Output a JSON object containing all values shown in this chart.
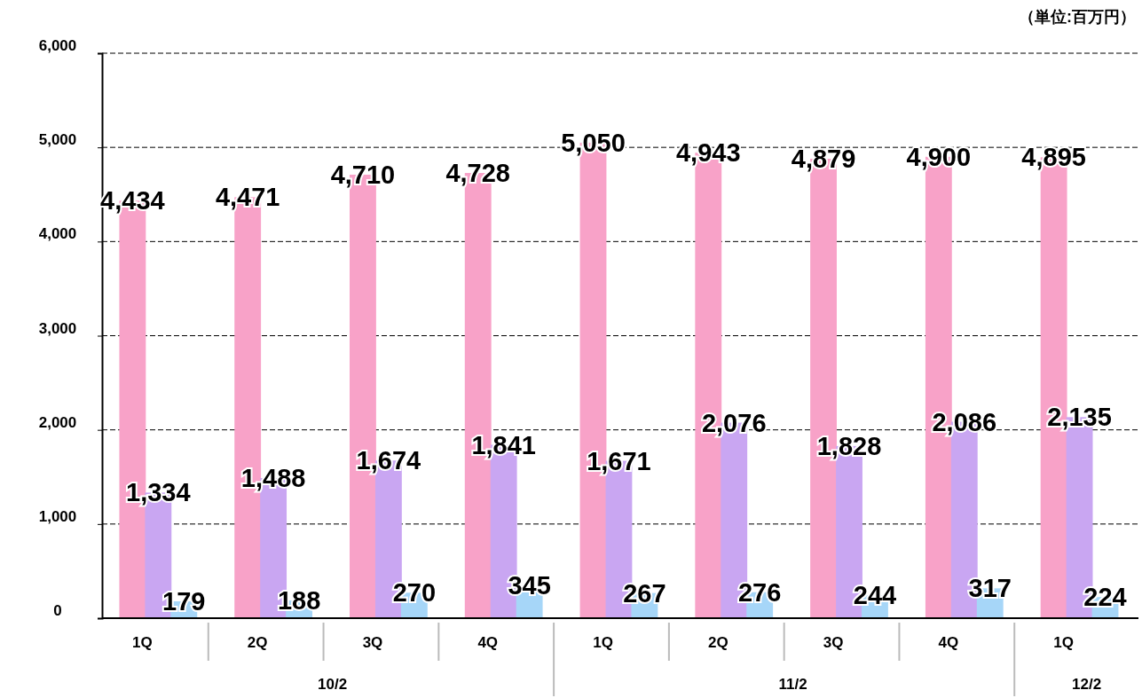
{
  "chart_data": {
    "type": "bar",
    "ylabel": "（単位:百万円）",
    "categories": [
      "1Q",
      "2Q",
      "3Q",
      "4Q",
      "1Q",
      "2Q",
      "3Q",
      "4Q",
      "1Q"
    ],
    "series": [
      {
        "color": "#f8a2c8",
        "values": [
          4434,
          4471,
          4710,
          4728,
          5050,
          4943,
          4879,
          4900,
          4895
        ],
        "value_labels": [
          "4,434",
          "4,471",
          "4,710",
          "4,728",
          "5,050",
          "4,943",
          "4,879",
          "4,900",
          "4,895"
        ]
      },
      {
        "color": "#c9a6f2",
        "values": [
          1334,
          1488,
          1674,
          1841,
          1671,
          2076,
          1828,
          2086,
          2135
        ],
        "value_labels": [
          "1,334",
          "1,488",
          "1,674",
          "1,841",
          "1,671",
          "2,076",
          "1,828",
          "2,086",
          "2,135"
        ]
      },
      {
        "color": "#a6d6f8",
        "values": [
          179,
          188,
          270,
          345,
          267,
          276,
          244,
          317,
          224
        ],
        "value_labels": [
          "179",
          "188",
          "270",
          "345",
          "267",
          "276",
          "244",
          "317",
          "224"
        ]
      }
    ],
    "ylim": [
      0,
      6000
    ],
    "yticks": [
      {
        "value": 0,
        "label": "0"
      },
      {
        "value": 1000,
        "label": "1,000"
      },
      {
        "value": 2000,
        "label": "2,000"
      },
      {
        "value": 3000,
        "label": "3,000"
      },
      {
        "value": 4000,
        "label": "4,000"
      },
      {
        "value": 5000,
        "label": "5,000"
      },
      {
        "value": 6000,
        "label": "6,000"
      }
    ],
    "grid": "y",
    "annotations": [
      "10/2",
      "11/2",
      "12/2"
    ]
  }
}
